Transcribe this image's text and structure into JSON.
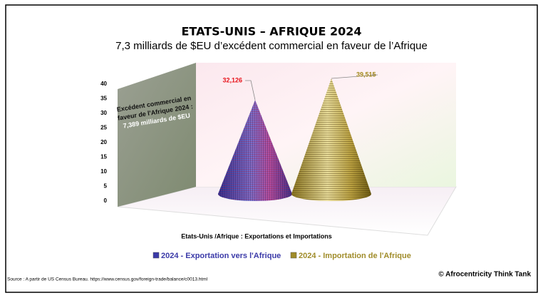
{
  "chart_data": {
    "type": "cone",
    "title": "ETATS-UNIS – AFRIQUE 2024",
    "subtitle": "7,3 milliards de $EU d’excédent commercial en faveur de l’Afrique",
    "x_label": "Etats-Unis /Afrique : Exportations et  Importations",
    "annotation": [
      "Excédent commercial en",
      "faveur de l'Afrique 2024 :",
      "7,389 milliards de $EU"
    ],
    "series": [
      {
        "name": "2024 - Exportation vers l'Afrique",
        "color": "#3b3aa8",
        "values": [
          32.126
        ],
        "value_labels": [
          "32,126"
        ],
        "label_color": "#e8141c"
      },
      {
        "name": "2024 - Importation de l'Afrique",
        "color": "#a08c2a",
        "values": [
          39.515
        ],
        "value_labels": [
          "39,515"
        ],
        "label_color": "#a38a1e"
      }
    ],
    "ylim": [
      0,
      40
    ],
    "yticks": [
      0,
      5,
      10,
      15,
      20,
      25,
      30,
      35,
      40
    ],
    "source": "Source : A partir de US Census Bureau. https://www.census.gov/foreign-trade/balance/c0013.html",
    "credit": "© Afrocentricity Think Tank"
  }
}
